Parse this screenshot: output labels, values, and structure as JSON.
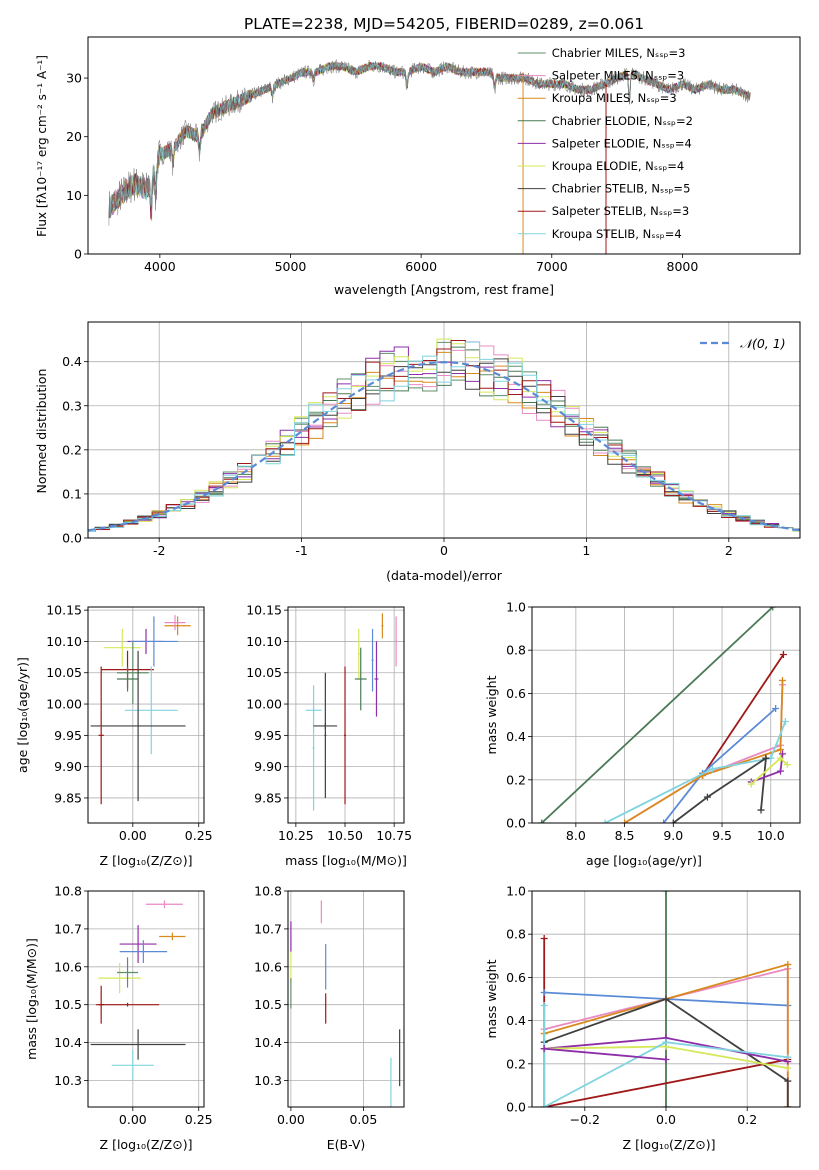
{
  "chart_data": [
    {
      "type": "line",
      "title": "PLATE=2238, MJD=54205, FIBERID=0289, z=0.061",
      "xlabel": "wavelength [Angstrom, rest frame]",
      "ylabel": "Flux [fλ10⁻¹⁷ erg cm⁻² s⁻¹ A⁻¹]",
      "xlim": [
        3450,
        8900
      ],
      "ylim": [
        0,
        37
      ],
      "xticks": [
        4000,
        5000,
        6000,
        7000,
        8000
      ],
      "yticks": [
        0,
        10,
        20,
        30
      ],
      "legend_position": "upper-right",
      "series": [
        {
          "name": "Chabrier MILES, Nₛₛₚ=3",
          "color": "#5f8f6a"
        },
        {
          "name": "Salpeter MILES, Nₛₛₚ=3",
          "color": "#e98ac4"
        },
        {
          "name": "Kroupa MILES, Nₛₛₚ=3",
          "color": "#d98a1e"
        },
        {
          "name": "Chabrier ELODIE, Nₛₛₚ=2",
          "color": "#4a7a55"
        },
        {
          "name": "Salpeter ELODIE, Nₛₛₚ=4",
          "color": "#8e2ea8"
        },
        {
          "name": "Kroupa ELODIE, Nₛₛₚ=4",
          "color": "#d5e85a"
        },
        {
          "name": "Chabrier STELIB, Nₛₛₚ=5",
          "color": "#404040"
        },
        {
          "name": "Salpeter STELIB, Nₛₛₚ=3",
          "color": "#a01818"
        },
        {
          "name": "Kroupa STELIB, Nₛₛₚ=4",
          "color": "#80d4e0"
        }
      ],
      "data": {
        "x": [
          3620,
          3700,
          3800,
          3900,
          3950,
          4000,
          4100,
          4200,
          4300,
          4400,
          4500,
          4600,
          4700,
          4800,
          4900,
          5000,
          5100,
          5200,
          5300,
          5400,
          5500,
          5600,
          5700,
          5800,
          5900,
          6000,
          6100,
          6200,
          6300,
          6400,
          6500,
          6600,
          6700,
          6800,
          6900,
          7000,
          7100,
          7200,
          7300,
          7400,
          7500,
          7600,
          7700,
          7800,
          7900,
          8000,
          8100,
          8200,
          8300,
          8400,
          8500
        ],
        "y": [
          8,
          10,
          12,
          11,
          14,
          17,
          18,
          21,
          20,
          24,
          25,
          26,
          27,
          28,
          29,
          30,
          31,
          31,
          32,
          32,
          31,
          32,
          32,
          31,
          31,
          32,
          31,
          32,
          31,
          31,
          31,
          30,
          30,
          30,
          29,
          29,
          29,
          28,
          28,
          29,
          30,
          31,
          30,
          29,
          28,
          29,
          28,
          29,
          28,
          28,
          27
        ]
      }
    },
    {
      "type": "line",
      "xlabel": "(data-model)/error",
      "ylabel": "Normed distribution",
      "xlim": [
        -2.5,
        2.5
      ],
      "ylim": [
        0,
        0.49
      ],
      "xticks": [
        -2,
        -1,
        0,
        1,
        2
      ],
      "yticks": [
        0.0,
        0.1,
        0.2,
        0.3,
        0.4
      ],
      "legend": [
        "𝒩(0, 1)"
      ],
      "legend_position": "upper-right",
      "reference_curve": {
        "name": "𝒩(0, 1)",
        "color": "#5b8bd6",
        "mean": 0,
        "sigma": 1
      },
      "bin_width": 0.1,
      "series_colors": [
        "#5f8f6a",
        "#e98ac4",
        "#d98a1e",
        "#4a7a55",
        "#8e2ea8",
        "#d5e85a",
        "#404040",
        "#a01818",
        "#80d4e0"
      ]
    },
    {
      "type": "scatter",
      "xlabel": "Z [log₁₀(Z/Z⊙)]",
      "ylabel": "age  [log₁₀(age/yr)]",
      "xlim": [
        -0.17,
        0.27
      ],
      "ylim": [
        9.81,
        10.155
      ],
      "xticks": [
        "−0.25",
        "0.00",
        "0.25"
      ],
      "xtick_values": [
        -0.25,
        0,
        0.25
      ],
      "yticks": [
        "9.85",
        "9.90",
        "9.95",
        "10.00",
        "10.05",
        "10.10",
        "10.15"
      ],
      "ytick_values": [
        9.85,
        9.9,
        9.95,
        10.0,
        10.05,
        10.1,
        10.15
      ],
      "points": [
        {
          "x": 0.17,
          "xerr": 0.05,
          "y": 10.125,
          "yerr": 0.015,
          "color": "#d98a1e"
        },
        {
          "x": 0.16,
          "xerr": 0.04,
          "y": 10.13,
          "yerr": 0.012,
          "color": "#e98ac4"
        },
        {
          "x": 0.05,
          "xerr": 0.07,
          "y": 10.1,
          "yerr": 0.02,
          "color": "#8e2ea8"
        },
        {
          "x": 0.08,
          "xerr": 0.09,
          "y": 10.1,
          "yerr": 0.04,
          "color": "#5b8bd6"
        },
        {
          "x": -0.04,
          "xerr": 0.07,
          "y": 10.09,
          "yerr": 0.03,
          "color": "#d5e85a"
        },
        {
          "x": 0.0,
          "xerr": 0.06,
          "y": 10.05,
          "yerr": 0.05,
          "color": "#5f8f6a"
        },
        {
          "x": -0.02,
          "xerr": 0.1,
          "y": 10.055,
          "yerr": 0.03,
          "color": "#a01818"
        },
        {
          "x": -0.02,
          "xerr": 0.04,
          "y": 10.04,
          "yerr": 0.02,
          "color": "#4a7a55"
        },
        {
          "x": 0.07,
          "xerr": 0.1,
          "y": 9.99,
          "yerr": 0.07,
          "color": "#80d4e0"
        },
        {
          "x": 0.02,
          "xerr": 0.18,
          "y": 9.965,
          "yerr": 0.12,
          "color": "#404040"
        },
        {
          "x": -0.12,
          "xerr": 0.01,
          "y": 9.95,
          "yerr": 0.11,
          "color": "#a01818"
        }
      ]
    },
    {
      "type": "scatter",
      "xlabel": "mass [log₁₀(M/M⊙)]",
      "ylabel": "",
      "xlim": [
        10.21,
        10.8
      ],
      "ylim": [
        9.81,
        10.155
      ],
      "xticks": [
        "10.25",
        "10.50",
        "10.75"
      ],
      "xtick_values": [
        10.25,
        10.5,
        10.75
      ],
      "yticks": [
        "9.85",
        "9.90",
        "9.95",
        "10.00",
        "10.05",
        "10.10",
        "10.15"
      ],
      "ytick_values": [
        9.85,
        9.9,
        9.95,
        10.0,
        10.05,
        10.1,
        10.15
      ],
      "points": [
        {
          "x": 10.69,
          "xerr": 0.005,
          "y": 10.125,
          "yerr": 0.02,
          "color": "#d98a1e"
        },
        {
          "x": 10.76,
          "xerr": 0.005,
          "y": 10.1,
          "yerr": 0.04,
          "color": "#e98ac4"
        },
        {
          "x": 10.66,
          "xerr": 0.01,
          "y": 10.04,
          "yerr": 0.06,
          "color": "#8e2ea8"
        },
        {
          "x": 10.64,
          "xerr": 0.005,
          "y": 10.07,
          "yerr": 0.05,
          "color": "#5b8bd6"
        },
        {
          "x": 10.57,
          "xerr": 0.005,
          "y": 10.08,
          "yerr": 0.04,
          "color": "#d5e85a"
        },
        {
          "x": 10.58,
          "xerr": 0.03,
          "y": 10.04,
          "yerr": 0.05,
          "color": "#4a7a55"
        },
        {
          "x": 10.5,
          "xerr": 0.005,
          "y": 9.95,
          "yerr": 0.11,
          "color": "#a01818"
        },
        {
          "x": 10.4,
          "xerr": 0.005,
          "y": 9.95,
          "yerr": 0.1,
          "color": "#404040"
        },
        {
          "x": 10.34,
          "xerr": 0.005,
          "y": 9.93,
          "yerr": 0.1,
          "color": "#80d4e0"
        },
        {
          "x": 10.4,
          "xerr": 0.06,
          "y": 9.965,
          "yerr": 0.005,
          "color": "#404040"
        },
        {
          "x": 10.34,
          "xerr": 0.04,
          "y": 9.99,
          "yerr": 0.005,
          "color": "#80d4e0"
        }
      ]
    },
    {
      "type": "line",
      "xlabel": "age  [log₁₀(age/yr)]",
      "ylabel": "mass weight",
      "xlim": [
        7.55,
        10.3
      ],
      "ylim": [
        0,
        1
      ],
      "xticks": [
        "8.0",
        "8.5",
        "9.0",
        "9.5",
        "10.0"
      ],
      "xtick_values": [
        8.0,
        8.5,
        9.0,
        9.5,
        10.0
      ],
      "yticks": [
        "0.0",
        "0.2",
        "0.4",
        "0.6",
        "0.8",
        "1.0"
      ],
      "ytick_values": [
        0,
        0.2,
        0.4,
        0.6,
        0.8,
        1.0
      ],
      "series": [
        {
          "color": "#4a7a55",
          "x": [
            7.65,
            10.02
          ],
          "y": [
            0,
            1
          ]
        },
        {
          "color": "#a01818",
          "x": [
            9.3,
            10.13
          ],
          "y": [
            0.22,
            0.78
          ]
        },
        {
          "color": "#5b8bd6",
          "x": [
            8.9,
            9.3,
            10.05
          ],
          "y": [
            0,
            0.23,
            0.53
          ]
        },
        {
          "color": "#e98ac4",
          "x": [
            8.5,
            9.3,
            10.1,
            10.12
          ],
          "y": [
            0,
            0.22,
            0.36,
            0.64
          ]
        },
        {
          "color": "#d98a1e",
          "x": [
            8.5,
            9.3,
            10.1,
            10.12
          ],
          "y": [
            0,
            0.22,
            0.34,
            0.66
          ]
        },
        {
          "color": "#80d4e0",
          "x": [
            8.3,
            9.4,
            10.0,
            10.15
          ],
          "y": [
            0,
            0.25,
            0.3,
            0.47
          ]
        },
        {
          "color": "#404040",
          "x": [
            9.0,
            9.35,
            9.95,
            9.9,
            9.95
          ],
          "y": [
            0,
            0.12,
            0.3,
            0.06,
            0.3
          ]
        },
        {
          "color": "#8e2ea8",
          "x": [
            9.8,
            10.1,
            10.12
          ],
          "y": [
            0.19,
            0.24,
            0.32
          ]
        },
        {
          "color": "#d5e85a",
          "x": [
            9.8,
            10.1,
            10.17
          ],
          "y": [
            0.18,
            0.3,
            0.27
          ]
        }
      ]
    },
    {
      "type": "scatter",
      "xlabel": "Z [log₁₀(Z/Z⊙)]",
      "ylabel": "mass [log₁₀(M/M⊙)]",
      "xlim": [
        -0.17,
        0.27
      ],
      "ylim": [
        10.23,
        10.8
      ],
      "xticks": [
        "−0.25",
        "0.00",
        "0.25"
      ],
      "xtick_values": [
        -0.25,
        0,
        0.25
      ],
      "yticks": [
        "10.3",
        "10.4",
        "10.5",
        "10.6",
        "10.7",
        "10.8"
      ],
      "ytick_values": [
        10.3,
        10.4,
        10.5,
        10.6,
        10.7,
        10.8
      ],
      "points": [
        {
          "x": 0.12,
          "xerr": 0.07,
          "y": 10.765,
          "yerr": 0.01,
          "color": "#e98ac4"
        },
        {
          "x": 0.15,
          "xerr": 0.05,
          "y": 10.68,
          "yerr": 0.01,
          "color": "#d98a1e"
        },
        {
          "x": 0.02,
          "xerr": 0.07,
          "y": 10.66,
          "yerr": 0.05,
          "color": "#8e2ea8"
        },
        {
          "x": 0.04,
          "xerr": 0.09,
          "y": 10.64,
          "yerr": 0.03,
          "color": "#5b8bd6"
        },
        {
          "x": -0.05,
          "xerr": 0.08,
          "y": 10.57,
          "yerr": 0.04,
          "color": "#d5e85a"
        },
        {
          "x": -0.02,
          "xerr": 0.04,
          "y": 10.585,
          "yerr": 0.04,
          "color": "#5f8f6a"
        },
        {
          "x": -0.12,
          "xerr": 0.01,
          "y": 10.5,
          "yerr": 0.05,
          "color": "#a01818"
        },
        {
          "x": -0.02,
          "xerr": 0.12,
          "y": 10.5,
          "yerr": 0.005,
          "color": "#a01818"
        },
        {
          "x": 0.02,
          "xerr": 0.18,
          "y": 10.395,
          "yerr": 0.04,
          "color": "#404040"
        },
        {
          "x": 0.0,
          "xerr": 0.08,
          "y": 10.34,
          "yerr": 0.04,
          "color": "#80d4e0"
        }
      ]
    },
    {
      "type": "scatter",
      "xlabel": "E(B-V)",
      "ylabel": "",
      "xlim": [
        -0.002,
        0.078
      ],
      "ylim": [
        10.23,
        10.8
      ],
      "xticks": [
        "0.00",
        "0.05"
      ],
      "xtick_values": [
        0,
        0.05
      ],
      "yticks": [
        "10.3",
        "10.4",
        "10.5",
        "10.6",
        "10.7",
        "10.8"
      ],
      "ytick_values": [
        10.3,
        10.4,
        10.5,
        10.6,
        10.7,
        10.8
      ],
      "points": [
        {
          "x": 0.0,
          "y": 10.68,
          "yerr": 0.04,
          "color": "#8e2ea8"
        },
        {
          "x": 0.0,
          "y": 10.6,
          "yerr": 0.04,
          "color": "#d5e85a"
        },
        {
          "x": 0.0,
          "y": 10.53,
          "yerr": 0.04,
          "color": "#5f8f6a"
        },
        {
          "x": 0.021,
          "y": 10.745,
          "yerr": 0.03,
          "color": "#e98ac4"
        },
        {
          "x": 0.024,
          "y": 10.6,
          "yerr": 0.06,
          "color": "#5b8bd6"
        },
        {
          "x": 0.024,
          "y": 10.49,
          "yerr": 0.04,
          "color": "#a01818"
        },
        {
          "x": 0.069,
          "y": 10.29,
          "yerr": 0.07,
          "color": "#80d4e0"
        },
        {
          "x": 0.075,
          "y": 10.36,
          "yerr": 0.075,
          "color": "#404040"
        }
      ]
    },
    {
      "type": "line",
      "xlabel": "Z [log₁₀(Z/Z⊙)]",
      "ylabel": "mass weight",
      "xlim": [
        -0.33,
        0.33
      ],
      "ylim": [
        0,
        1
      ],
      "xticks": [
        "−0.2",
        "0.0",
        "0.2"
      ],
      "xtick_values": [
        -0.2,
        0,
        0.2
      ],
      "yticks": [
        "0.0",
        "0.2",
        "0.4",
        "0.6",
        "0.8",
        "1.0"
      ],
      "ytick_values": [
        0,
        0.2,
        0.4,
        0.6,
        0.8,
        1.0
      ],
      "series": [
        {
          "color": "#4a7a55",
          "x": [
            0,
            0
          ],
          "y": [
            0,
            1
          ]
        },
        {
          "color": "#a01818",
          "x": [
            -0.3,
            -0.3,
            0.3
          ],
          "y": [
            0.78,
            0,
            0.22
          ]
        },
        {
          "color": "#5b8bd6",
          "x": [
            -0.3,
            0,
            0.3
          ],
          "y": [
            0.53,
            0.5,
            0.47
          ]
        },
        {
          "color": "#e98ac4",
          "x": [
            -0.3,
            0,
            0.3,
            0.3
          ],
          "y": [
            0.36,
            0.5,
            0.64,
            0
          ]
        },
        {
          "color": "#d98a1e",
          "x": [
            -0.3,
            0,
            0.3,
            0.3
          ],
          "y": [
            0.34,
            0.5,
            0.66,
            0
          ]
        },
        {
          "color": "#404040",
          "x": [
            -0.3,
            0,
            0.3,
            0.3
          ],
          "y": [
            0.3,
            0.5,
            0.12,
            0
          ]
        },
        {
          "color": "#8e2ea8",
          "x": [
            -0.3,
            0,
            0.3
          ],
          "y": [
            0.27,
            0.32,
            0.21
          ]
        },
        {
          "color": "#d5e85a",
          "x": [
            -0.3,
            0,
            0.3
          ],
          "y": [
            0.27,
            0.28,
            0.18
          ]
        },
        {
          "color": "#80d4e0",
          "x": [
            -0.3,
            -0.3,
            0,
            0.3
          ],
          "y": [
            0.47,
            0,
            0.3,
            0.23
          ]
        },
        {
          "color": "#8e2ea8",
          "x": [
            -0.3,
            0
          ],
          "y": [
            0.27,
            0.22
          ]
        }
      ]
    }
  ]
}
